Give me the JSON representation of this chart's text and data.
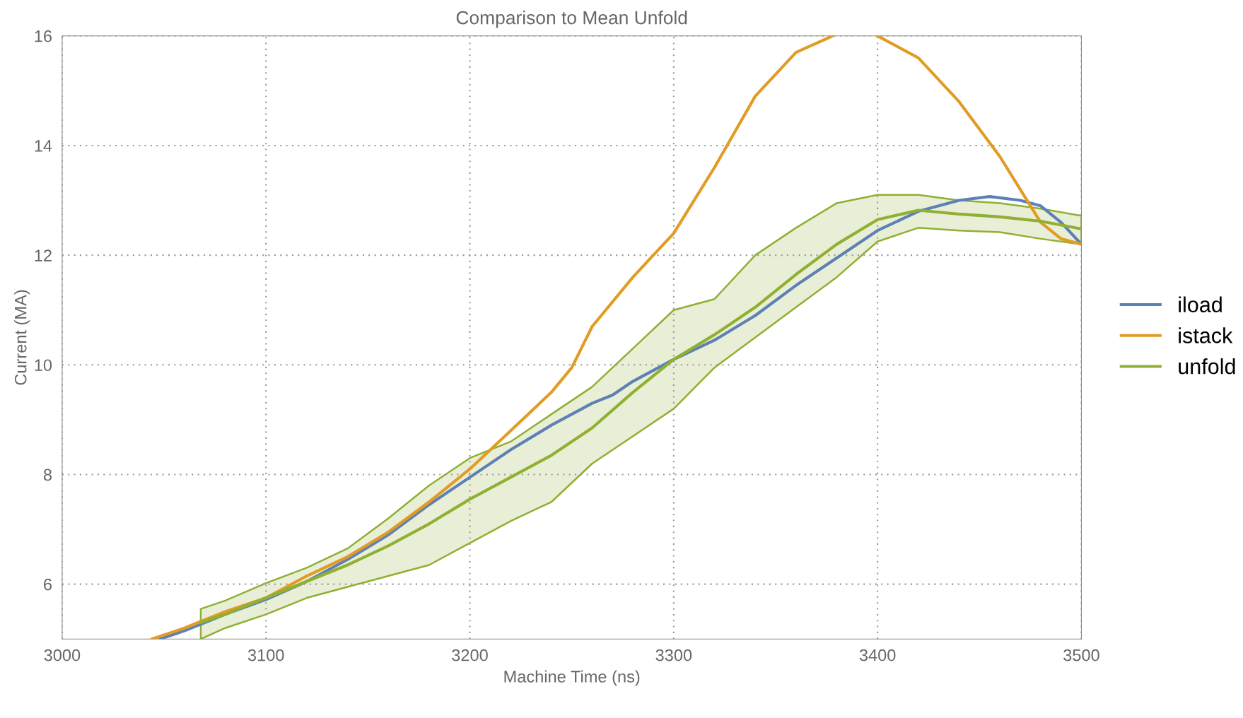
{
  "chart_data": {
    "type": "line",
    "title": "Comparison to Mean Unfold",
    "xlabel": "Machine Time (ns)",
    "ylabel": "Current (MA)",
    "xlim": [
      3000,
      3500
    ],
    "xticks": [
      3000,
      3100,
      3200,
      3300,
      3400,
      3500
    ],
    "ylim": [
      5,
      16
    ],
    "yticks": [
      6,
      8,
      10,
      12,
      14,
      16
    ],
    "grid": true,
    "legend": "right",
    "series": [
      {
        "name": "iload",
        "color": "#5e81b5",
        "x": [
          3048,
          3060,
          3080,
          3100,
          3120,
          3140,
          3160,
          3180,
          3200,
          3220,
          3240,
          3260,
          3270,
          3280,
          3300,
          3320,
          3340,
          3360,
          3380,
          3400,
          3420,
          3440,
          3455,
          3470,
          3480,
          3490,
          3500
        ],
        "values": [
          5.0,
          5.15,
          5.45,
          5.72,
          6.05,
          6.45,
          6.9,
          7.45,
          7.95,
          8.45,
          8.9,
          9.3,
          9.45,
          9.7,
          10.1,
          10.45,
          10.9,
          11.45,
          11.95,
          12.45,
          12.8,
          13.0,
          13.07,
          13.0,
          12.9,
          12.6,
          12.2
        ]
      },
      {
        "name": "istack",
        "color": "#e19c24",
        "x": [
          3044,
          3060,
          3080,
          3100,
          3120,
          3140,
          3160,
          3180,
          3200,
          3220,
          3240,
          3250,
          3260,
          3280,
          3300,
          3320,
          3340,
          3360,
          3378,
          3390,
          3400,
          3420,
          3440,
          3460,
          3480,
          3490,
          3500
        ],
        "values": [
          5.0,
          5.2,
          5.5,
          5.75,
          6.15,
          6.5,
          6.95,
          7.5,
          8.1,
          8.8,
          9.5,
          9.95,
          10.7,
          11.6,
          12.4,
          13.6,
          14.9,
          15.7,
          16.0,
          null,
          16.0,
          15.6,
          14.8,
          13.8,
          12.6,
          12.3,
          12.2
        ]
      },
      {
        "name": "unfold",
        "color": "#8fb032",
        "x": [
          3068,
          3080,
          3100,
          3120,
          3140,
          3160,
          3180,
          3200,
          3220,
          3240,
          3260,
          3280,
          3300,
          3320,
          3340,
          3360,
          3380,
          3400,
          3420,
          3440,
          3460,
          3480,
          3500
        ],
        "values": [
          5.3,
          5.45,
          5.75,
          6.05,
          6.35,
          6.7,
          7.1,
          7.55,
          7.95,
          8.35,
          8.85,
          9.5,
          10.1,
          10.55,
          11.05,
          11.65,
          12.2,
          12.65,
          12.82,
          12.75,
          12.7,
          12.62,
          12.48
        ],
        "lower": [
          5.0,
          5.2,
          5.45,
          5.75,
          5.95,
          6.15,
          6.35,
          6.75,
          7.15,
          7.5,
          8.2,
          8.7,
          9.2,
          9.95,
          10.5,
          11.05,
          11.6,
          12.25,
          12.5,
          12.45,
          12.42,
          12.3,
          12.2
        ],
        "upper": [
          5.55,
          5.7,
          6.02,
          6.3,
          6.65,
          7.2,
          7.8,
          8.3,
          8.6,
          9.1,
          9.6,
          10.3,
          11.0,
          11.2,
          12.0,
          12.5,
          12.95,
          13.1,
          13.1,
          13.0,
          12.95,
          12.85,
          12.72
        ]
      }
    ]
  }
}
